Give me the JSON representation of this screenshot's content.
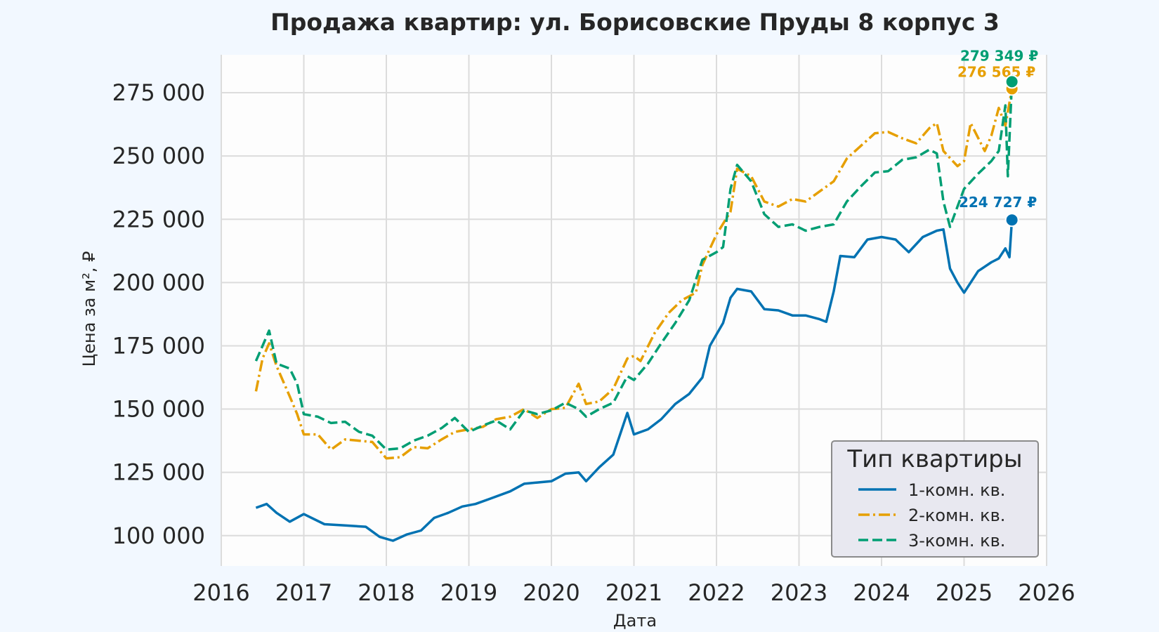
{
  "chart_data": {
    "type": "line",
    "title": "Продажа квартир: ул. Борисовские Пруды 8 корпус 3",
    "xlabel": "Дата",
    "ylabel": "Цена за м², ₽",
    "xlim": [
      2016.0,
      2026.0
    ],
    "ylim": [
      88000,
      290000
    ],
    "x_ticks": [
      "2016",
      "2017",
      "2018",
      "2019",
      "2020",
      "2021",
      "2022",
      "2023",
      "2024",
      "2025",
      "2026"
    ],
    "y_ticks": [
      {
        "value": 100000,
        "label": "100 000"
      },
      {
        "value": 125000,
        "label": "125 000"
      },
      {
        "value": 150000,
        "label": "150 000"
      },
      {
        "value": 175000,
        "label": "175 000"
      },
      {
        "value": 200000,
        "label": "200 000"
      },
      {
        "value": 225000,
        "label": "225 000"
      },
      {
        "value": 250000,
        "label": "250 000"
      },
      {
        "value": 275000,
        "label": "275 000"
      }
    ],
    "grid": true,
    "legend": {
      "title": "Тип квартиры",
      "position": "bottom-right"
    },
    "series": [
      {
        "name": "1-комн. кв.",
        "color": "#0072b2",
        "line_style": "solid",
        "end_label": "224 727 ₽",
        "end_value": 224727,
        "points": [
          [
            2016.42,
            111000
          ],
          [
            2016.55,
            112500
          ],
          [
            2016.67,
            109000
          ],
          [
            2016.83,
            105500
          ],
          [
            2017.0,
            108500
          ],
          [
            2017.25,
            104500
          ],
          [
            2017.5,
            104000
          ],
          [
            2017.75,
            103500
          ],
          [
            2017.92,
            99500
          ],
          [
            2018.08,
            98000
          ],
          [
            2018.25,
            100500
          ],
          [
            2018.42,
            102000
          ],
          [
            2018.58,
            107000
          ],
          [
            2018.75,
            109000
          ],
          [
            2018.92,
            111500
          ],
          [
            2019.08,
            112500
          ],
          [
            2019.25,
            114500
          ],
          [
            2019.5,
            117500
          ],
          [
            2019.67,
            120500
          ],
          [
            2019.83,
            121000
          ],
          [
            2020.0,
            121500
          ],
          [
            2020.17,
            124500
          ],
          [
            2020.33,
            125000
          ],
          [
            2020.42,
            121500
          ],
          [
            2020.58,
            127000
          ],
          [
            2020.75,
            132000
          ],
          [
            2020.92,
            148500
          ],
          [
            2021.0,
            140000
          ],
          [
            2021.17,
            142000
          ],
          [
            2021.33,
            146000
          ],
          [
            2021.5,
            152000
          ],
          [
            2021.67,
            156000
          ],
          [
            2021.83,
            162500
          ],
          [
            2021.92,
            175000
          ],
          [
            2022.08,
            184000
          ],
          [
            2022.17,
            194000
          ],
          [
            2022.25,
            197500
          ],
          [
            2022.42,
            196500
          ],
          [
            2022.58,
            189500
          ],
          [
            2022.75,
            189000
          ],
          [
            2022.92,
            187000
          ],
          [
            2023.08,
            187000
          ],
          [
            2023.25,
            185500
          ],
          [
            2023.33,
            184500
          ],
          [
            2023.42,
            196500
          ],
          [
            2023.5,
            210500
          ],
          [
            2023.67,
            210000
          ],
          [
            2023.83,
            217000
          ],
          [
            2024.0,
            218000
          ],
          [
            2024.17,
            217000
          ],
          [
            2024.33,
            212000
          ],
          [
            2024.5,
            218000
          ],
          [
            2024.67,
            220500
          ],
          [
            2024.75,
            221000
          ],
          [
            2024.83,
            205500
          ],
          [
            2024.92,
            200000
          ],
          [
            2025.0,
            196000
          ],
          [
            2025.17,
            204500
          ],
          [
            2025.33,
            208000
          ],
          [
            2025.42,
            209500
          ],
          [
            2025.5,
            213500
          ],
          [
            2025.55,
            210000
          ],
          [
            2025.58,
            224727
          ]
        ]
      },
      {
        "name": "2-комн. кв.",
        "color": "#e69f00",
        "line_style": "dashdot",
        "end_label": "276 565 ₽",
        "end_value": 276565,
        "points": [
          [
            2016.42,
            157000
          ],
          [
            2016.5,
            170000
          ],
          [
            2016.58,
            176000
          ],
          [
            2016.67,
            167000
          ],
          [
            2016.83,
            155000
          ],
          [
            2016.92,
            148000
          ],
          [
            2017.0,
            140000
          ],
          [
            2017.17,
            140000
          ],
          [
            2017.33,
            134000
          ],
          [
            2017.5,
            138000
          ],
          [
            2017.67,
            137500
          ],
          [
            2017.83,
            137000
          ],
          [
            2018.0,
            130500
          ],
          [
            2018.17,
            131000
          ],
          [
            2018.33,
            135000
          ],
          [
            2018.5,
            134500
          ],
          [
            2018.67,
            138000
          ],
          [
            2018.83,
            141000
          ],
          [
            2019.0,
            142000
          ],
          [
            2019.17,
            143000
          ],
          [
            2019.33,
            146000
          ],
          [
            2019.5,
            147000
          ],
          [
            2019.67,
            150000
          ],
          [
            2019.83,
            146500
          ],
          [
            2020.0,
            150000
          ],
          [
            2020.17,
            150500
          ],
          [
            2020.33,
            160000
          ],
          [
            2020.42,
            152000
          ],
          [
            2020.58,
            153000
          ],
          [
            2020.75,
            158000
          ],
          [
            2020.92,
            170000
          ],
          [
            2021.0,
            171000
          ],
          [
            2021.08,
            169000
          ],
          [
            2021.25,
            180000
          ],
          [
            2021.42,
            188000
          ],
          [
            2021.58,
            193000
          ],
          [
            2021.75,
            196000
          ],
          [
            2021.83,
            207000
          ],
          [
            2022.0,
            219000
          ],
          [
            2022.17,
            228000
          ],
          [
            2022.25,
            245000
          ],
          [
            2022.42,
            242000
          ],
          [
            2022.58,
            232000
          ],
          [
            2022.75,
            230000
          ],
          [
            2022.92,
            233000
          ],
          [
            2023.08,
            232000
          ],
          [
            2023.25,
            236000
          ],
          [
            2023.42,
            240000
          ],
          [
            2023.58,
            249000
          ],
          [
            2023.75,
            254000
          ],
          [
            2023.92,
            259000
          ],
          [
            2024.08,
            259500
          ],
          [
            2024.25,
            257000
          ],
          [
            2024.42,
            255000
          ],
          [
            2024.58,
            261000
          ],
          [
            2024.67,
            263000
          ],
          [
            2024.75,
            252000
          ],
          [
            2024.92,
            246000
          ],
          [
            2025.0,
            248000
          ],
          [
            2025.08,
            263000
          ],
          [
            2025.25,
            252000
          ],
          [
            2025.33,
            258000
          ],
          [
            2025.42,
            269000
          ],
          [
            2025.5,
            262000
          ],
          [
            2025.58,
            276565
          ]
        ]
      },
      {
        "name": "3-комн. кв.",
        "color": "#009e73",
        "line_style": "dashed",
        "end_label": "279 349 ₽",
        "end_value": 279349,
        "points": [
          [
            2016.42,
            169000
          ],
          [
            2016.5,
            175000
          ],
          [
            2016.58,
            181000
          ],
          [
            2016.67,
            168000
          ],
          [
            2016.83,
            166000
          ],
          [
            2016.92,
            160000
          ],
          [
            2017.0,
            148000
          ],
          [
            2017.17,
            147000
          ],
          [
            2017.33,
            144500
          ],
          [
            2017.5,
            145000
          ],
          [
            2017.67,
            141000
          ],
          [
            2017.83,
            139500
          ],
          [
            2018.0,
            134000
          ],
          [
            2018.17,
            134500
          ],
          [
            2018.33,
            137500
          ],
          [
            2018.5,
            139500
          ],
          [
            2018.67,
            142500
          ],
          [
            2018.83,
            146500
          ],
          [
            2019.0,
            141000
          ],
          [
            2019.17,
            143500
          ],
          [
            2019.33,
            145500
          ],
          [
            2019.5,
            142000
          ],
          [
            2019.67,
            149500
          ],
          [
            2019.83,
            148000
          ],
          [
            2020.0,
            149500
          ],
          [
            2020.17,
            152500
          ],
          [
            2020.33,
            150000
          ],
          [
            2020.42,
            147000
          ],
          [
            2020.58,
            150000
          ],
          [
            2020.75,
            152500
          ],
          [
            2020.92,
            163000
          ],
          [
            2021.0,
            161500
          ],
          [
            2021.17,
            168000
          ],
          [
            2021.33,
            176000
          ],
          [
            2021.5,
            184000
          ],
          [
            2021.67,
            193000
          ],
          [
            2021.83,
            209000
          ],
          [
            2022.0,
            212000
          ],
          [
            2022.08,
            214000
          ],
          [
            2022.17,
            237000
          ],
          [
            2022.25,
            246500
          ],
          [
            2022.42,
            240000
          ],
          [
            2022.58,
            227000
          ],
          [
            2022.75,
            222000
          ],
          [
            2022.92,
            223000
          ],
          [
            2023.08,
            220500
          ],
          [
            2023.25,
            222000
          ],
          [
            2023.42,
            223000
          ],
          [
            2023.58,
            232000
          ],
          [
            2023.75,
            238000
          ],
          [
            2023.92,
            243500
          ],
          [
            2024.08,
            244000
          ],
          [
            2024.25,
            248500
          ],
          [
            2024.42,
            249500
          ],
          [
            2024.58,
            252500
          ],
          [
            2024.67,
            251000
          ],
          [
            2024.75,
            232000
          ],
          [
            2024.83,
            222000
          ],
          [
            2024.92,
            230000
          ],
          [
            2025.0,
            237000
          ],
          [
            2025.17,
            243000
          ],
          [
            2025.33,
            248000
          ],
          [
            2025.42,
            252000
          ],
          [
            2025.5,
            270000
          ],
          [
            2025.53,
            242000
          ],
          [
            2025.58,
            279349
          ]
        ]
      }
    ]
  }
}
